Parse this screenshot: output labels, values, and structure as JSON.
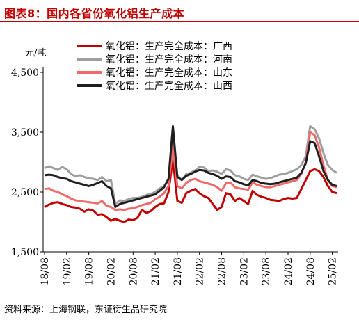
{
  "figure": {
    "title": "图表8：国内各省份氧化铝生产成本",
    "source": "资料来源：上海钢联，东证衍生品研究院"
  },
  "chart_data": {
    "type": "line",
    "unit_label": "元/吨",
    "xlabel": "",
    "ylabel": "",
    "ylim": [
      1500,
      4500
    ],
    "yticks": [
      {
        "value": 4500,
        "label": "4,500"
      },
      {
        "value": 3500,
        "label": "3,500"
      },
      {
        "value": 2500,
        "label": "2,500"
      },
      {
        "value": 1500,
        "label": "1,500"
      }
    ],
    "xticks": [
      "18/08",
      "19/02",
      "19/08",
      "20/02",
      "20/08",
      "21/02",
      "21/08",
      "22/02",
      "22/08",
      "23/02",
      "23/08",
      "24/02",
      "24/08",
      "25/02"
    ],
    "x_start": "2018/08",
    "x_end": "2025/06",
    "legend_position": "top-right",
    "series": [
      {
        "name": "氧化铝：生产完全成本：广西",
        "color": "#c00000",
        "values": [
          2250,
          2290,
          2320,
          2330,
          2300,
          2280,
          2250,
          2240,
          2220,
          2170,
          2210,
          2190,
          2120,
          2130,
          2080,
          2020,
          2050,
          2020,
          2000,
          2040,
          2030,
          2070,
          2200,
          2150,
          2180,
          2250,
          2300,
          2310,
          2500,
          3050,
          2350,
          2320,
          2480,
          2520,
          2550,
          2480,
          2430,
          2400,
          2300,
          2200,
          2250,
          2480,
          2460,
          2350,
          2400,
          2350,
          2300,
          2520,
          2450,
          2420,
          2400,
          2370,
          2360,
          2350,
          2380,
          2400,
          2390,
          2400,
          2550,
          2700,
          2850,
          2880,
          2850,
          2750,
          2600,
          2500,
          2480
        ]
      },
      {
        "name": "氧化铝：生产完全成本：河南",
        "color": "#9e9e9e",
        "values": [
          2900,
          2930,
          2900,
          2870,
          2920,
          2880,
          2800,
          2760,
          2780,
          2750,
          2730,
          2720,
          2700,
          2750,
          2680,
          2700,
          2300,
          2360,
          2350,
          2380,
          2400,
          2400,
          2420,
          2450,
          2470,
          2500,
          2560,
          2600,
          2700,
          3350,
          2780,
          2700,
          2800,
          2820,
          2860,
          2920,
          2910,
          2850,
          2860,
          2840,
          2800,
          2880,
          2860,
          2780,
          2760,
          2720,
          2700,
          2790,
          2760,
          2740,
          2720,
          2730,
          2760,
          2790,
          2800,
          2820,
          2850,
          2880,
          2950,
          3100,
          3600,
          3550,
          3400,
          3150,
          2950,
          2870,
          2820
        ]
      },
      {
        "name": "氧化铝：生产完全成本：山东",
        "color": "#f06a6a",
        "values": [
          2550,
          2560,
          2520,
          2500,
          2460,
          2430,
          2390,
          2360,
          2350,
          2340,
          2330,
          2320,
          2310,
          2350,
          2270,
          2250,
          2200,
          2210,
          2200,
          2220,
          2230,
          2250,
          2280,
          2300,
          2320,
          2380,
          2420,
          2480,
          2600,
          3250,
          2600,
          2560,
          2650,
          2700,
          2720,
          2680,
          2660,
          2640,
          2620,
          2580,
          2520,
          2650,
          2660,
          2580,
          2560,
          2550,
          2540,
          2660,
          2620,
          2600,
          2580,
          2580,
          2600,
          2620,
          2640,
          2660,
          2680,
          2700,
          2800,
          3000,
          3500,
          3450,
          3250,
          2950,
          2700,
          2600,
          2580
        ]
      },
      {
        "name": "氧化铝：生产完全成本：山西",
        "color": "#1f1f1f",
        "values": [
          2780,
          2790,
          2780,
          2750,
          2730,
          2720,
          2680,
          2660,
          2640,
          2620,
          2600,
          2620,
          2650,
          2680,
          2600,
          2560,
          2250,
          2300,
          2320,
          2340,
          2360,
          2380,
          2400,
          2420,
          2440,
          2460,
          2520,
          2580,
          2720,
          3600,
          2750,
          2700,
          2770,
          2800,
          2840,
          2870,
          2860,
          2820,
          2800,
          2770,
          2720,
          2760,
          2750,
          2680,
          2660,
          2630,
          2610,
          2700,
          2680,
          2650,
          2640,
          2630,
          2640,
          2660,
          2680,
          2700,
          2720,
          2740,
          2820,
          2980,
          3350,
          3320,
          3100,
          2850,
          2700,
          2620,
          2600
        ]
      }
    ]
  }
}
